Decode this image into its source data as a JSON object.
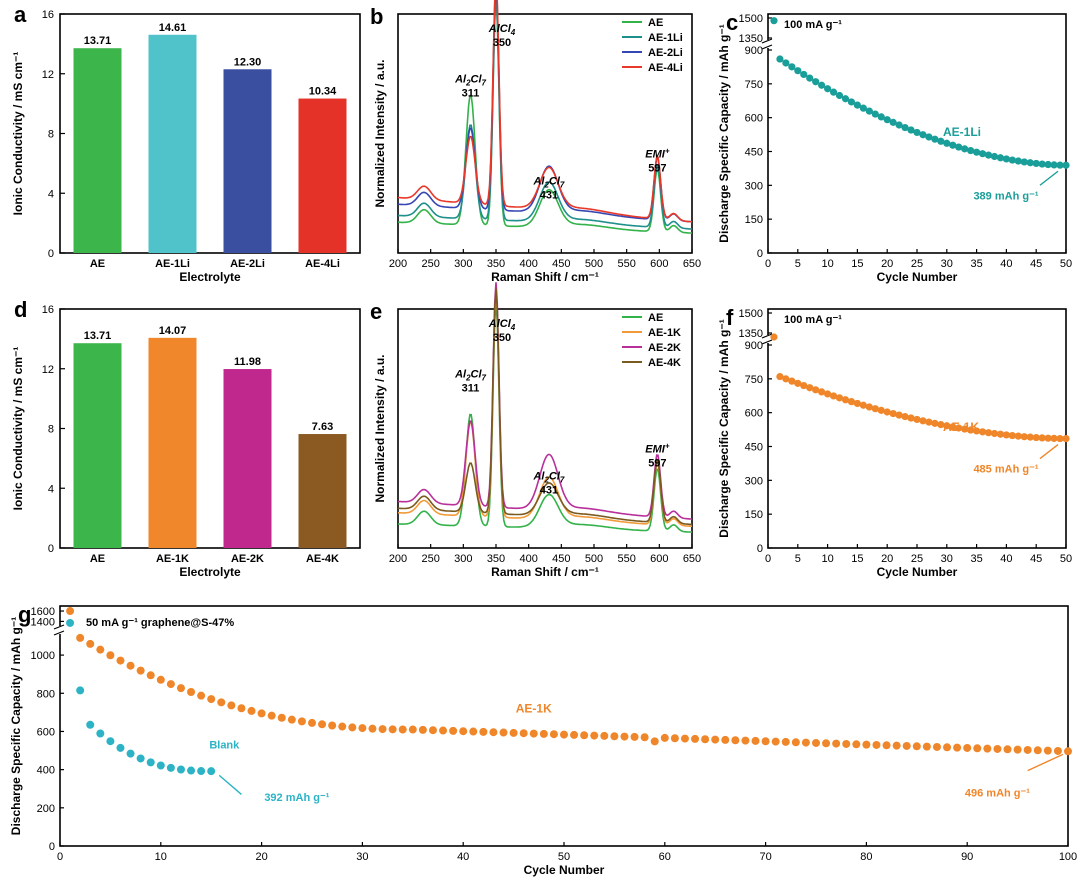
{
  "chart_data": [
    {
      "id": "a",
      "panel_label": "a",
      "type": "bar",
      "xlabel": "Electrolyte",
      "ylabel": "Ionic Conductivity / mS cm⁻¹",
      "ylim": [
        0,
        16
      ],
      "yticks": [
        "0",
        "4",
        "8",
        "12",
        "16"
      ],
      "categories": [
        "AE",
        "AE-1Li",
        "AE-2Li",
        "AE-4Li"
      ],
      "values": [
        13.71,
        14.61,
        12.3,
        10.34
      ],
      "value_labels": [
        "13.71",
        "14.61",
        "12.30",
        "10.34"
      ],
      "colors": [
        "#3cb54a",
        "#4fc3c9",
        "#3a4fa0",
        "#e53228"
      ]
    },
    {
      "id": "b",
      "panel_label": "b",
      "type": "line",
      "xlabel": "Raman Shift / cm⁻¹",
      "ylabel": "Normalized Intensity / a.u.",
      "xlim": [
        200,
        650
      ],
      "xticks": [
        "200",
        "250",
        "300",
        "350",
        "400",
        "450",
        "500",
        "550",
        "600",
        "650"
      ],
      "series": [
        {
          "name": "AE",
          "color": "#33b24a",
          "p311": 0.58,
          "p431": 0.16,
          "base": 0.08,
          "tail": 0.03
        },
        {
          "name": "AE-1Li",
          "color": "#1f8f8c",
          "p311": 0.42,
          "p431": 0.17,
          "base": 0.1,
          "tail": 0.04
        },
        {
          "name": "AE-2Li",
          "color": "#3646b3",
          "p311": 0.36,
          "p431": 0.2,
          "base": 0.13,
          "tail": 0.06
        },
        {
          "name": "AE-4Li",
          "color": "#e8382a",
          "p311": 0.3,
          "p431": 0.18,
          "base": 0.18,
          "tail": 0.04
        }
      ],
      "annotations": {
        "alcl4": "AlCl",
        "alcl4_sub": "4",
        "alcl4_pos": "350",
        "al2cl7": "Al",
        "al2cl7_sub1": "2",
        "al2cl7_cl": "Cl",
        "al2cl7_sub2": "7",
        "al2cl7_pos1": "311",
        "al2cl7_pos2": "431",
        "emi": "EMI",
        "emi_sup": "+",
        "emi_pos": "597"
      }
    },
    {
      "id": "c",
      "panel_label": "c",
      "type": "scatter",
      "xlabel": "Cycle Number",
      "ylabel": "Discharge Specific Capacity / mAh g⁻¹",
      "xlim": [
        0,
        50
      ],
      "xticks": [
        "0",
        "5",
        "10",
        "15",
        "20",
        "25",
        "30",
        "35",
        "40",
        "45",
        "50"
      ],
      "ylim_lower": [
        0,
        900
      ],
      "yticks_lower": [
        "0",
        "150",
        "300",
        "450",
        "600",
        "750",
        "900"
      ],
      "ylim_upper": [
        1350,
        1500
      ],
      "yticks_upper": [
        "1350",
        "1500"
      ],
      "color": "#1a9e9a",
      "first_point": {
        "x": 1,
        "y": 1480
      },
      "points_start": 860,
      "points_end": 389,
      "rate_label": "100 mA g⁻¹",
      "series_label": "AE-1Li",
      "end_label": "389 mAh g⁻¹"
    },
    {
      "id": "d",
      "panel_label": "d",
      "type": "bar",
      "xlabel": "Electrolyte",
      "ylabel": "Ionic Conductivity / mS cm⁻¹",
      "ylim": [
        0,
        16
      ],
      "yticks": [
        "0",
        "4",
        "8",
        "12",
        "16"
      ],
      "categories": [
        "AE",
        "AE-1K",
        "AE-2K",
        "AE-4K"
      ],
      "values": [
        13.71,
        14.07,
        11.98,
        7.63
      ],
      "value_labels": [
        "13.71",
        "14.07",
        "11.98",
        "7.63"
      ],
      "colors": [
        "#3cb54a",
        "#f0872a",
        "#c0288e",
        "#8a5a22"
      ]
    },
    {
      "id": "e",
      "panel_label": "e",
      "type": "line",
      "xlabel": "Raman Shift / cm⁻¹",
      "ylabel": "Normalized Intensity / a.u.",
      "xlim": [
        200,
        650
      ],
      "xticks": [
        "200",
        "250",
        "300",
        "350",
        "400",
        "450",
        "500",
        "550",
        "600",
        "650"
      ],
      "series": [
        {
          "name": "AE",
          "color": "#33b24a",
          "p311": 0.5,
          "p431": 0.14,
          "base": 0.06,
          "tail": 0.02
        },
        {
          "name": "AE-1K",
          "color": "#f29a3a",
          "p311": 0.42,
          "p431": 0.18,
          "base": 0.1,
          "tail": 0.03
        },
        {
          "name": "AE-2K",
          "color": "#b8309a",
          "p311": 0.38,
          "p431": 0.24,
          "base": 0.13,
          "tail": 0.05
        },
        {
          "name": "AE-4K",
          "color": "#7a5a1e",
          "p311": 0.22,
          "p431": 0.14,
          "base": 0.12,
          "tail": 0.03
        }
      ],
      "annotations": {
        "alcl4": "AlCl",
        "alcl4_sub": "4",
        "alcl4_pos": "350",
        "al2cl7": "Al",
        "al2cl7_sub1": "2",
        "al2cl7_cl": "Cl",
        "al2cl7_sub2": "7",
        "al2cl7_pos1": "311",
        "al2cl7_pos2": "431",
        "emi": "EMI",
        "emi_sup": "+",
        "emi_pos": "597"
      }
    },
    {
      "id": "f",
      "panel_label": "f",
      "type": "scatter",
      "xlabel": "Cycle Number",
      "ylabel": "Discharge Specific Capacity / mAh g⁻¹",
      "xlim": [
        0,
        50
      ],
      "xticks": [
        "0",
        "5",
        "10",
        "15",
        "20",
        "25",
        "30",
        "35",
        "40",
        "45",
        "50"
      ],
      "ylim_lower": [
        0,
        900
      ],
      "yticks_lower": [
        "0",
        "150",
        "300",
        "450",
        "600",
        "750",
        "900"
      ],
      "ylim_upper": [
        1350,
        1500
      ],
      "yticks_upper": [
        "1350",
        "1500"
      ],
      "color": "#f0862a",
      "first_point": {
        "x": 1,
        "y": 1320
      },
      "points_start": 760,
      "points_end": 485,
      "rate_label": "100 mA g⁻¹",
      "series_label": "AE-1K",
      "end_label": "485 mAh g⁻¹"
    },
    {
      "id": "g",
      "panel_label": "g",
      "type": "scatter",
      "xlabel": "Cycle Number",
      "ylabel": "Discharge Specific Capacity / mAh g⁻¹",
      "xlim": [
        0,
        100
      ],
      "xticks": [
        "0",
        "10",
        "20",
        "30",
        "40",
        "50",
        "60",
        "70",
        "80",
        "90",
        "100"
      ],
      "ylim_lower": [
        0,
        1100
      ],
      "yticks_lower": [
        "0",
        "200",
        "400",
        "600",
        "800",
        "1000"
      ],
      "ylim_upper": [
        1350,
        1620
      ],
      "yticks_upper": [
        "1400",
        "1600"
      ],
      "rate_label": "50 mA g⁻¹  graphene@S-47%",
      "series": [
        {
          "name": "AE-1K",
          "color": "#f0862a",
          "first": 1600,
          "second": 1090,
          "end": 496,
          "label": "AE-1K",
          "end_label": "496 mAh g⁻¹"
        },
        {
          "name": "Blank",
          "color": "#2cb3c6",
          "first": 1370,
          "second": 815,
          "end": 392,
          "label": "Blank",
          "end_label": "392 mAh g⁻¹"
        }
      ]
    }
  ]
}
